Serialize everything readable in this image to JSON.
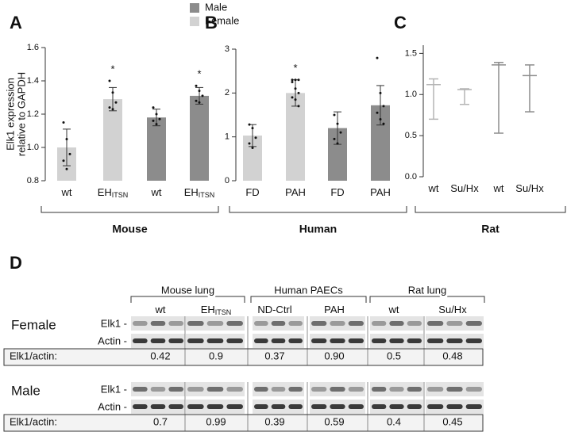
{
  "chart_data": [
    {
      "type": "bar",
      "title": "A",
      "ylabel": [
        "Elk1 expression",
        "relative to GAPDH"
      ],
      "categories": [
        "wt",
        "EH",
        "wt",
        "EH"
      ],
      "category_subscripts": [
        null,
        "ITSN",
        null,
        "ITSN"
      ],
      "group_label": "Mouse",
      "asterisks": [
        null,
        "*",
        null,
        "*"
      ],
      "ylim": [
        0.8,
        1.6
      ],
      "yticks": [
        0.8,
        {
          "value": 1.0,
          "label": "1.0"
        },
        1.2,
        1.4,
        1.6
      ],
      "series": [
        {
          "name": "Male",
          "color": "#8c8c8c",
          "values": [
            null,
            null,
            1.18,
            1.31
          ],
          "errors": [
            null,
            null,
            0.05,
            0.05
          ],
          "points": [
            null,
            null,
            [
              1.24,
              1.2,
              1.17,
              1.16,
              1.14
            ],
            [
              1.37,
              1.34,
              1.31,
              1.28,
              1.27
            ]
          ]
        },
        {
          "name": "Female",
          "color": "#d2d2d2",
          "values": [
            1.0,
            1.29,
            null,
            null
          ],
          "errors": [
            0.11,
            0.07,
            null,
            null
          ],
          "points": [
            [
              1.15,
              1.05,
              0.96,
              0.92,
              0.87
            ],
            [
              1.4,
              1.33,
              1.27,
              1.24,
              1.23
            ],
            null,
            null
          ]
        }
      ]
    },
    {
      "type": "bar",
      "title": "B",
      "categories": [
        "FD",
        "PAH",
        "FD",
        "PAH"
      ],
      "group_label": "Human",
      "asterisks": [
        null,
        "*",
        null,
        null
      ],
      "ylim": [
        0,
        3
      ],
      "yticks": [
        0,
        1,
        2,
        3
      ],
      "series": [
        {
          "color": "#d2d2d2",
          "values": [
            1.03,
            2.0,
            null,
            null
          ],
          "errors": [
            0.25,
            0.3,
            null,
            null
          ],
          "points": [
            [
              1.28,
              1.2,
              0.98,
              0.85,
              0.75
            ],
            [
              2.3,
              2.3,
              2.3,
              2.25,
              2.1,
              2.0,
              1.9,
              1.85,
              1.7
            ],
            null,
            null
          ]
        },
        {
          "color": "#8c8c8c",
          "values": [
            null,
            null,
            1.2,
            1.72
          ],
          "errors": [
            null,
            null,
            0.37,
            0.45
          ],
          "points": [
            null,
            null,
            [
              1.5,
              1.3,
              1.1,
              0.95,
              0.85
            ],
            [
              2.8,
              2.0,
              1.7,
              1.55,
              1.4,
              1.3
            ]
          ]
        }
      ]
    },
    {
      "type": "errorbar",
      "title": "C",
      "categories": [
        "wt",
        "Su/Hx",
        "wt",
        "Su/Hx"
      ],
      "group_label": "Rat",
      "ylim": [
        0,
        1.6
      ],
      "yticks": [
        {
          "value": 0.0,
          "label": "0.0"
        },
        0.5,
        {
          "value": 1.0,
          "label": "1.0"
        },
        1.5
      ],
      "series": [
        {
          "color": "#b4b4b4",
          "values": [
            1.12,
            1.06,
            null,
            null
          ],
          "whisker_low": [
            0.7,
            0.88,
            null,
            null
          ],
          "whisker_high": [
            1.19,
            1.07,
            null,
            null
          ]
        },
        {
          "color": "#8c8c8c",
          "values": [
            null,
            null,
            1.36,
            1.23
          ],
          "whisker_low": [
            null,
            null,
            0.53,
            0.79
          ],
          "whisker_high": [
            null,
            null,
            1.39,
            1.36
          ]
        }
      ]
    }
  ],
  "blot": {
    "title": "D",
    "groups": [
      "Mouse lung",
      "Human PAECs",
      "Rat lung"
    ],
    "lanes": [
      "wt",
      "EH",
      "ND-Ctrl",
      "PAH",
      "wt",
      "Su/Hx"
    ],
    "lane_subscripts": [
      null,
      "ITSN",
      null,
      null,
      null,
      null
    ],
    "rows": [
      {
        "sex": "Female",
        "bands": [
          "Elk1 -",
          "Actin -"
        ],
        "ratio_label": "Elk1/actin:",
        "ratios": [
          "0.42",
          "0.9",
          "0.37",
          "0.90",
          "0.5",
          "0.48"
        ]
      },
      {
        "sex": "Male",
        "bands": [
          "Elk1 -",
          "Actin -"
        ],
        "ratio_label": "Elk1/actin:",
        "ratios": [
          "0.7",
          "0.99",
          "0.39",
          "0.59",
          "0.4",
          "0.45"
        ]
      }
    ]
  }
}
